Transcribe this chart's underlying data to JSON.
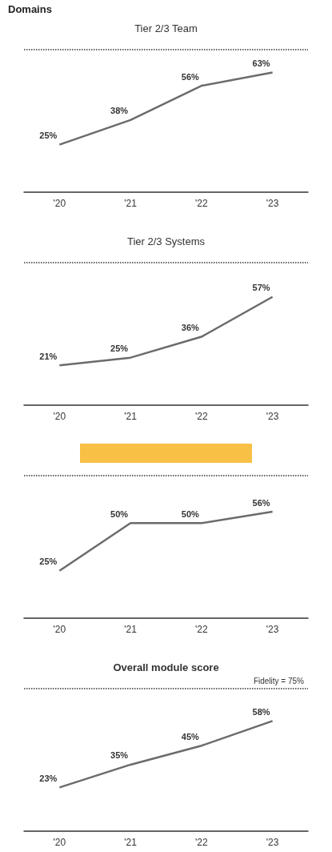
{
  "chart_data": [
    {
      "type": "line",
      "title": "Tier 2/3 Team",
      "annotations": [
        "Domains"
      ],
      "categories": [
        "'20",
        "'21",
        "'22",
        "'23"
      ],
      "values": [
        25,
        38,
        56,
        63
      ],
      "value_labels": [
        "25%",
        "38%",
        "56%",
        "63%"
      ],
      "color": "#6b6b6b",
      "ylim": [
        0,
        75
      ],
      "tick_labels": "x",
      "marker": "none",
      "ref_lines": [
        {
          "axis": "y",
          "value": 75,
          "label": null,
          "line_style": "dotted",
          "color": "#333333"
        }
      ]
    },
    {
      "type": "line",
      "title": "Tier 2/3 Systems",
      "categories": [
        "'20",
        "'21",
        "'22",
        "'23"
      ],
      "values": [
        21,
        25,
        36,
        57
      ],
      "value_labels": [
        "21%",
        "25%",
        "36%",
        "57%"
      ],
      "color": "#6b6b6b",
      "ylim": [
        0,
        75
      ],
      "tick_labels": "x",
      "marker": "none",
      "ref_lines": [
        {
          "axis": "y",
          "value": 75,
          "label": null,
          "line_style": "dotted",
          "color": "#333333"
        }
      ]
    },
    {
      "type": "line",
      "categories": [
        "'20",
        "'21",
        "'22",
        "'23"
      ],
      "values": [
        25,
        50,
        50,
        56
      ],
      "value_labels": [
        "25%",
        "50%",
        "50%",
        "56%"
      ],
      "color": "#6b6b6b",
      "ylim": [
        0,
        75
      ],
      "tick_labels": "x",
      "marker": "none",
      "ref_lines": [
        {
          "axis": "y",
          "value": 75,
          "label": null,
          "line_style": "dotted",
          "color": "#333333"
        }
      ]
    },
    {
      "type": "line",
      "title": "Overall module score",
      "categories": [
        "'20",
        "'21",
        "'22",
        "'23"
      ],
      "values": [
        23,
        35,
        45,
        58
      ],
      "value_labels": [
        "23%",
        "35%",
        "45%",
        "58%"
      ],
      "color": "#6b6b6b",
      "ylim": [
        0,
        75
      ],
      "tick_labels": "x",
      "marker": "none",
      "ref_lines": [
        {
          "axis": "y",
          "value": 75,
          "label": "Fidelity = 75%",
          "line_style": "dotted",
          "color": "#333333"
        }
      ]
    }
  ]
}
